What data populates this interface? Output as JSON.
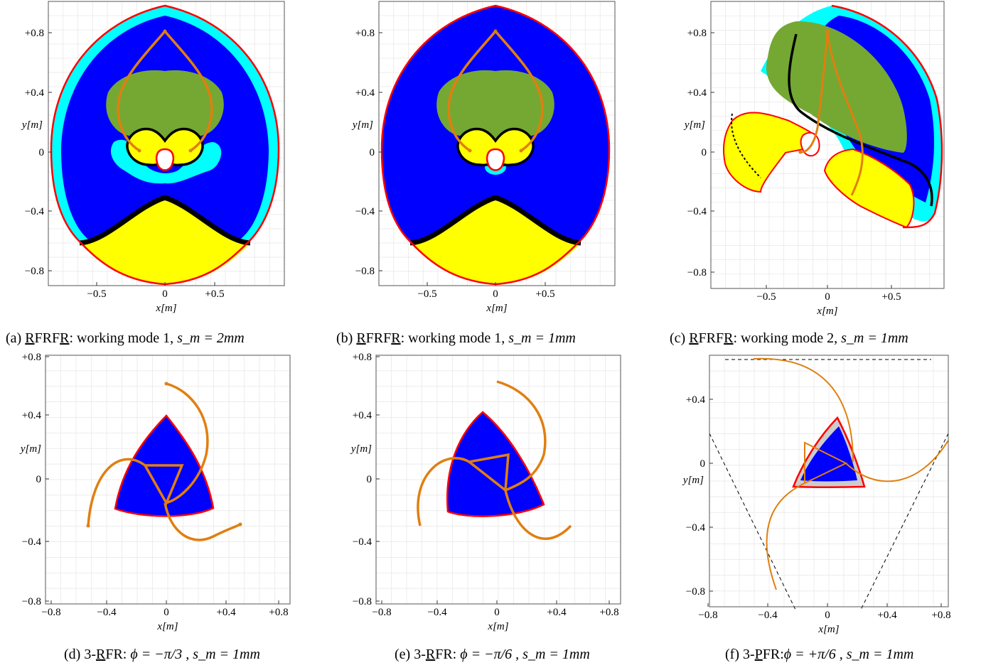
{
  "figure": {
    "colors": {
      "blue": "#0000ff",
      "cyan": "#00ffff",
      "green": "#74a833",
      "yellow": "#ffff00",
      "black": "#000000",
      "red": "#ff0000",
      "orange": "#e07f10",
      "grey": "#cccccc"
    },
    "panels": [
      {
        "id": "a",
        "caption_prefix": "(a) ",
        "caption_ul": "R",
        "caption_mid": "FRF",
        "caption_ul2": "R",
        "caption_rest": ": working mode 1, ",
        "caption_math": "s_m = 2mm",
        "x_ticks": [
          "−0.5",
          "0",
          "+0.5"
        ],
        "y_ticks": [
          "+0.8",
          "+0.4",
          "0",
          "−0.4",
          "−0.8"
        ],
        "x_label": "x[m]",
        "y_label": "y[m]"
      },
      {
        "id": "b",
        "caption_prefix": "(b) ",
        "caption_ul": "R",
        "caption_mid": "FRF",
        "caption_ul2": "R",
        "caption_rest": ": working mode 1, ",
        "caption_math": "s_m = 1mm",
        "x_ticks": [
          "−0.5",
          "0",
          "+0.5"
        ],
        "y_ticks": [
          "+0.8",
          "+0.4",
          "0",
          "−0.4",
          "−0.8"
        ],
        "x_label": "x[m]",
        "y_label": "y[m]"
      },
      {
        "id": "c",
        "caption_prefix": "(c) ",
        "caption_ul": "R",
        "caption_mid": "FRF",
        "caption_ul2": "R",
        "caption_rest": ": working mode 2, ",
        "caption_math": "s_m = 1mm",
        "x_ticks": [
          "−0.5",
          "0",
          "+0.5"
        ],
        "y_ticks": [
          "+0.8",
          "+0.4",
          "0",
          "−0.4",
          "−0.8"
        ],
        "x_label": "x[m]",
        "y_label": "y[m]"
      },
      {
        "id": "d",
        "caption_prefix": "(d) 3-",
        "caption_ul": "R",
        "caption_mid": "FR: ",
        "caption_ul2": "",
        "caption_rest": "",
        "caption_math": "ϕ = −π/3 , s_m = 1mm",
        "x_ticks": [
          "−0.8",
          "−0.4",
          "0",
          "+0.4",
          "+0.8"
        ],
        "y_ticks": [
          "+0.8",
          "+0.4",
          "0",
          "−0.4",
          "−0.8"
        ],
        "x_label": "x[m]",
        "y_label": "y[m]"
      },
      {
        "id": "e",
        "caption_prefix": "(e) 3-",
        "caption_ul": "R",
        "caption_mid": "FR: ",
        "caption_ul2": "",
        "caption_rest": "",
        "caption_math": "ϕ = −π/6 , s_m = 1mm",
        "x_ticks": [
          "−0.8",
          "−0.4",
          "0",
          "+0.4",
          "+0.8"
        ],
        "y_ticks": [
          "+0.8",
          "+0.4",
          "0",
          "−0.4",
          "−0.8"
        ],
        "x_label": "x[m]",
        "y_label": "y[m]"
      },
      {
        "id": "f",
        "caption_prefix": "(f) 3-",
        "caption_ul": "P",
        "caption_mid": "FR:",
        "caption_ul2": "",
        "caption_rest": "",
        "caption_math": "ϕ = +π/6 , s_m = 1mm",
        "x_ticks": [
          "−0.8",
          "−0.4",
          "0",
          "+0.4",
          "+0.8"
        ],
        "y_ticks": [
          "+0.4",
          "0",
          "−0.4",
          "−0.8"
        ],
        "x_label": "x[m]",
        "y_label": "y[m]"
      }
    ]
  }
}
